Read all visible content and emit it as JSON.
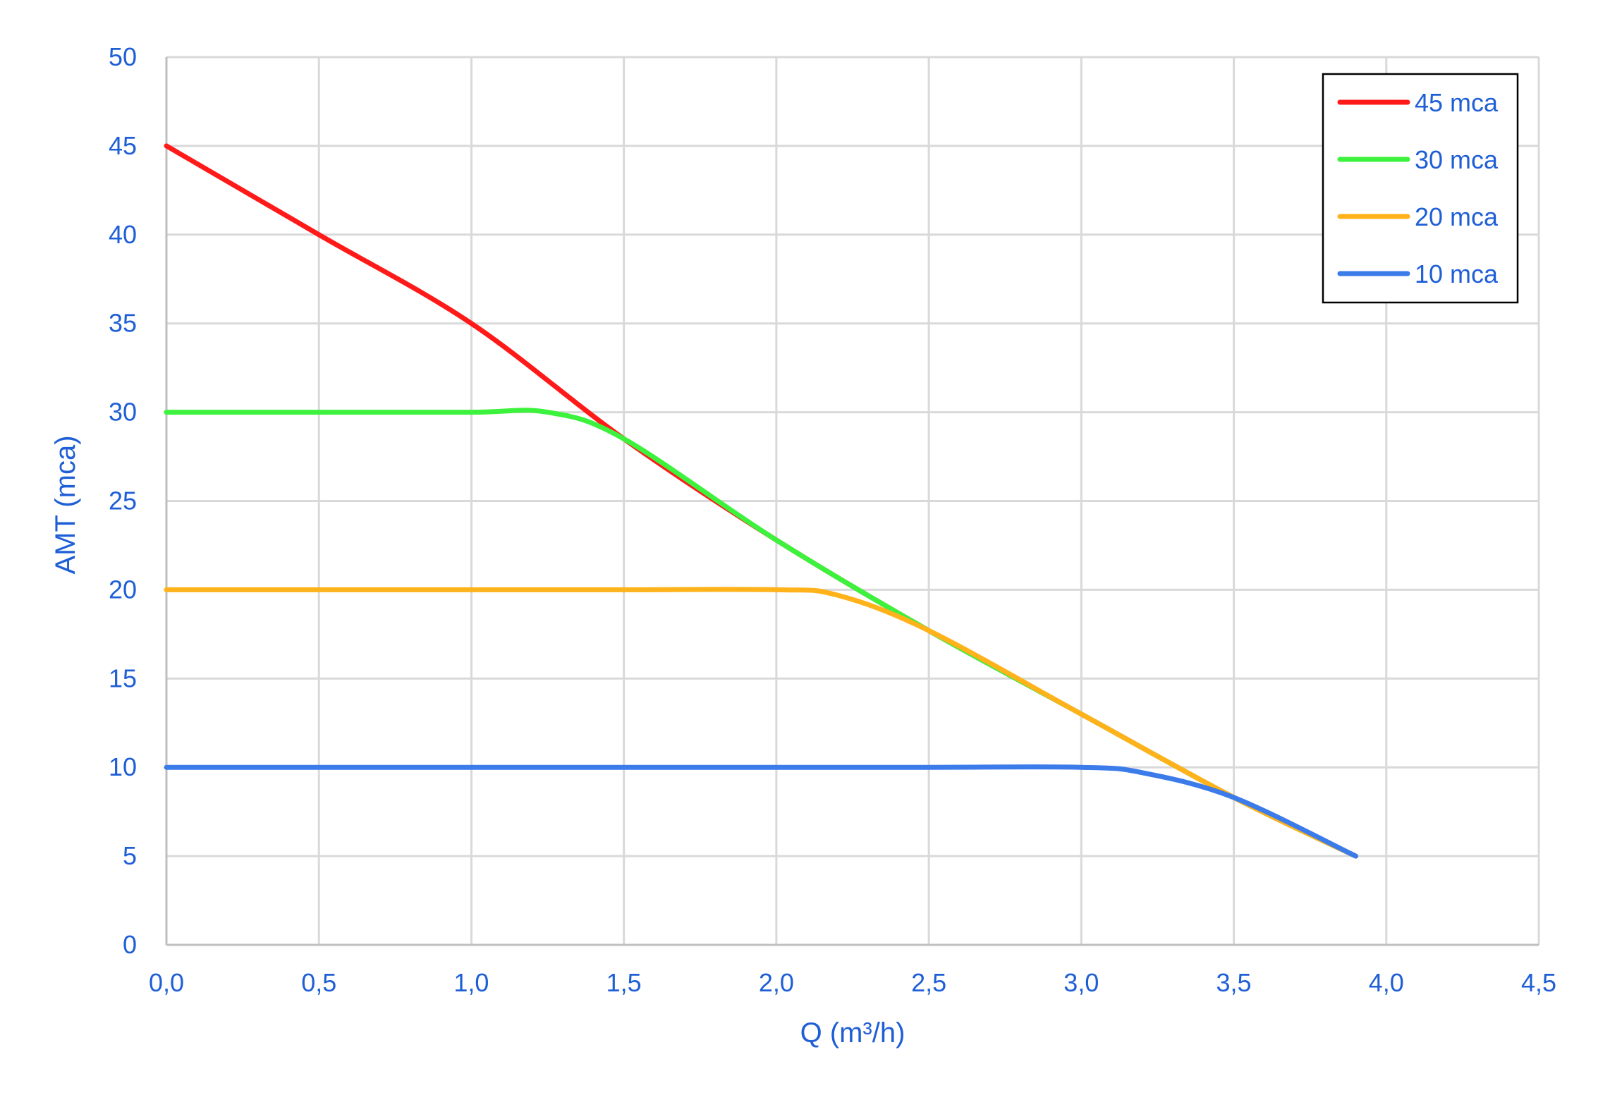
{
  "chart_data": {
    "type": "line",
    "xlabel": "Q (m³/h)",
    "ylabel": "AMT (mca)",
    "xlim": [
      0,
      4.5
    ],
    "ylim": [
      0,
      50
    ],
    "x_ticks": [
      "0,0",
      "0,5",
      "1,0",
      "1,5",
      "2,0",
      "2,5",
      "3,0",
      "3,5",
      "4,0",
      "4,5"
    ],
    "y_ticks": [
      "0",
      "5",
      "10",
      "15",
      "20",
      "25",
      "30",
      "35",
      "40",
      "45",
      "50"
    ],
    "grid": true,
    "legend_position": "top-right",
    "text_color": "#1F5FD6",
    "series": [
      {
        "name": "45 mca",
        "color": "#FF1A1A",
        "points": [
          [
            0,
            45
          ],
          [
            0.5,
            40
          ],
          [
            1.0,
            35
          ],
          [
            1.5,
            28.5
          ],
          [
            2.0,
            22.8
          ],
          [
            2.5,
            17.7
          ],
          [
            3.0,
            13.0
          ],
          [
            3.5,
            8.3
          ],
          [
            3.9,
            5
          ]
        ]
      },
      {
        "name": "30 mca",
        "color": "#3DF23D",
        "points": [
          [
            0,
            30
          ],
          [
            0.5,
            30
          ],
          [
            1.0,
            30
          ],
          [
            1.25,
            30
          ],
          [
            1.5,
            28.5
          ],
          [
            2.0,
            22.8
          ],
          [
            2.5,
            17.7
          ],
          [
            3.0,
            13.0
          ],
          [
            3.5,
            8.3
          ],
          [
            3.9,
            5
          ]
        ]
      },
      {
        "name": "20 mca",
        "color": "#FFB21A",
        "points": [
          [
            0,
            20
          ],
          [
            0.5,
            20
          ],
          [
            1.0,
            20
          ],
          [
            1.5,
            20
          ],
          [
            2.0,
            20
          ],
          [
            2.2,
            19.7
          ],
          [
            2.5,
            17.7
          ],
          [
            3.0,
            13.0
          ],
          [
            3.5,
            8.3
          ],
          [
            3.9,
            5
          ]
        ]
      },
      {
        "name": "10 mca",
        "color": "#3C7BEA",
        "points": [
          [
            0,
            10
          ],
          [
            0.5,
            10
          ],
          [
            1.0,
            10
          ],
          [
            1.5,
            10
          ],
          [
            2.0,
            10
          ],
          [
            2.5,
            10
          ],
          [
            3.0,
            10
          ],
          [
            3.2,
            9.7
          ],
          [
            3.5,
            8.3
          ],
          [
            3.9,
            5
          ]
        ]
      }
    ]
  }
}
